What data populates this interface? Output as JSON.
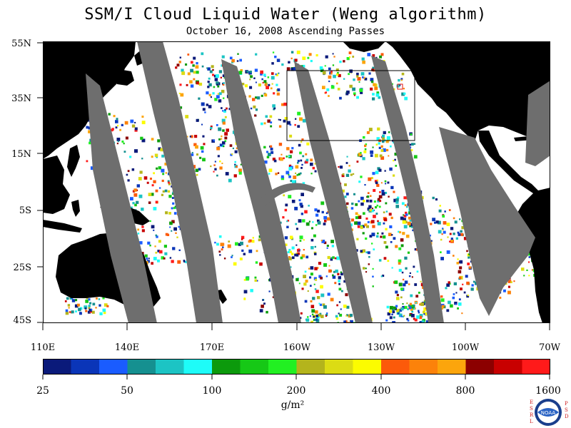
{
  "title": "SSM/I Cloud Liquid Water (Weng algorithm)",
  "subtitle": "October 16, 2008  Ascending Passes",
  "lat_labels": [
    "55N",
    "35N",
    "15N",
    "5S",
    "25S",
    "45S"
  ],
  "lon_labels": [
    "110E",
    "140E",
    "170E",
    "160W",
    "130W",
    "100W",
    "70W"
  ],
  "colorbar": {
    "tick_labels": [
      "25",
      "50",
      "100",
      "200",
      "400",
      "800",
      "1600"
    ],
    "units": "g/m²",
    "colors": [
      "#0a1a7a",
      "#0a35b8",
      "#1a5cff",
      "#159090",
      "#1cc4c4",
      "#1efcf8",
      "#0c9a0c",
      "#16c816",
      "#22f022",
      "#b4b41c",
      "#dcdc14",
      "#fcfc00",
      "#fc5a0a",
      "#fc820a",
      "#fca50c",
      "#8c0000",
      "#c80000",
      "#ff1a1a"
    ]
  },
  "logo": {
    "left_letters": "ESRL",
    "right_letters": "PSD",
    "center_text": "NOAA"
  },
  "map_colors": {
    "ocean": "#ffffff",
    "land": "#000000",
    "gap": "#6e6e6e"
  }
}
